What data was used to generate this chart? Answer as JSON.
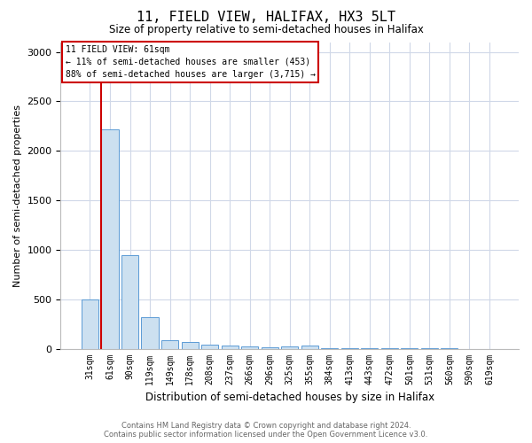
{
  "title": "11, FIELD VIEW, HALIFAX, HX3 5LT",
  "subtitle": "Size of property relative to semi-detached houses in Halifax",
  "xlabel": "Distribution of semi-detached houses by size in Halifax",
  "ylabel": "Number of semi-detached properties",
  "footer_line1": "Contains HM Land Registry data © Crown copyright and database right 2024.",
  "footer_line2": "Contains public sector information licensed under the Open Government Licence v3.0.",
  "annotation_line1": "11 FIELD VIEW: 61sqm",
  "annotation_line2": "← 11% of semi-detached houses are smaller (453)",
  "annotation_line3": "88% of semi-detached houses are larger (3,715) →",
  "bar_color": "#cce0f0",
  "bar_edge_color": "#5b9bd5",
  "highlight_line_color": "#cc0000",
  "annotation_box_color": "#cc0000",
  "background_color": "#ffffff",
  "grid_color": "#d0d8e8",
  "categories": [
    "31sqm",
    "61sqm",
    "90sqm",
    "119sqm",
    "149sqm",
    "178sqm",
    "208sqm",
    "237sqm",
    "266sqm",
    "296sqm",
    "325sqm",
    "355sqm",
    "384sqm",
    "413sqm",
    "443sqm",
    "472sqm",
    "501sqm",
    "531sqm",
    "560sqm",
    "590sqm",
    "619sqm"
  ],
  "values": [
    500,
    2220,
    950,
    320,
    85,
    70,
    45,
    30,
    20,
    15,
    20,
    30,
    5,
    3,
    2,
    2,
    1,
    1,
    1,
    0,
    0
  ],
  "ylim": [
    0,
    3100
  ],
  "yticks": [
    0,
    500,
    1000,
    1500,
    2000,
    2500,
    3000
  ],
  "title_fontsize": 11,
  "subtitle_fontsize": 8.5,
  "ylabel_fontsize": 8,
  "xlabel_fontsize": 8.5,
  "tick_fontsize": 8,
  "xtick_fontsize": 7
}
